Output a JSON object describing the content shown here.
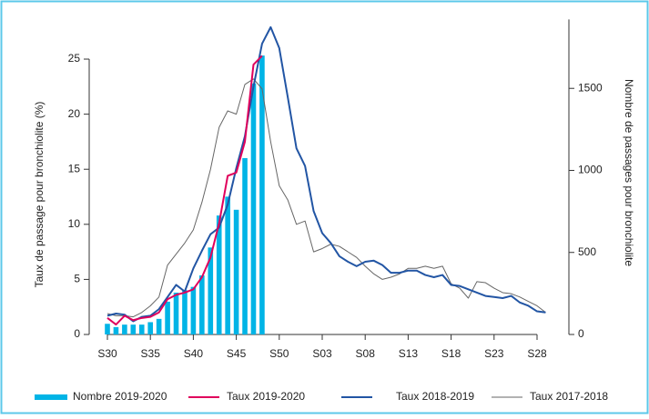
{
  "chart_data": {
    "type": "bar",
    "y_label": "Taux de passage pour bronchiolite (%)",
    "y2_label": "Nombre de passages pour bronchiolite",
    "categories": [
      "S30",
      null,
      null,
      null,
      null,
      "S35",
      null,
      null,
      null,
      null,
      "S40",
      null,
      null,
      null,
      null,
      "S45",
      null,
      null,
      null,
      null,
      "S50",
      null,
      null,
      null,
      null,
      "S03",
      null,
      null,
      null,
      null,
      "S08",
      null,
      null,
      null,
      null,
      "S13",
      null,
      null,
      null,
      null,
      "S18",
      null,
      null,
      null,
      null,
      "S23",
      null,
      null,
      null,
      null,
      "S28",
      null
    ],
    "ylim": [
      0,
      28.6
    ],
    "yticks": [
      0,
      5,
      10,
      15,
      20,
      25
    ],
    "y2lim": [
      0,
      1920
    ],
    "y2ticks": [
      0,
      500,
      1000,
      1500
    ],
    "grid": false,
    "series": [
      {
        "name": "Nombre 2019-2020",
        "type": "bar",
        "axis": "y2",
        "color": "#00b4e6",
        "values": [
          65,
          45,
          60,
          60,
          60,
          75,
          95,
          200,
          255,
          270,
          290,
          360,
          530,
          725,
          840,
          760,
          1075,
          1530,
          1700,
          null,
          null,
          null,
          null,
          null,
          null,
          null,
          null,
          null,
          null,
          null,
          null,
          null,
          null,
          null,
          null,
          null,
          null,
          null,
          null,
          null,
          null,
          null,
          null,
          null,
          null,
          null,
          null,
          null,
          null,
          null,
          null,
          null
        ]
      },
      {
        "name": "Taux 2019-2020",
        "type": "line",
        "color": "#e0005c",
        "values": [
          1.5,
          0.9,
          1.7,
          1.3,
          1.5,
          1.6,
          2.0,
          3.2,
          3.6,
          3.8,
          4.1,
          5.2,
          7.0,
          10.1,
          14.4,
          14.7,
          17.5,
          24.5,
          25.3,
          null,
          null,
          null,
          null,
          null,
          null,
          null,
          null,
          null,
          null,
          null,
          null,
          null,
          null,
          null,
          null,
          null,
          null,
          null,
          null,
          null,
          null,
          null,
          null,
          null,
          null,
          null,
          null,
          null,
          null,
          null,
          null,
          null
        ]
      },
      {
        "name": "Taux 2018-2019",
        "type": "line",
        "color": "#2255a4",
        "values": [
          1.7,
          1.9,
          1.8,
          1.2,
          1.6,
          1.7,
          2.3,
          3.4,
          4.5,
          3.9,
          6.0,
          7.6,
          9.1,
          9.7,
          11.8,
          15.1,
          18.0,
          22.5,
          26.4,
          27.9,
          26.0,
          21.5,
          16.9,
          15.3,
          11.2,
          9.2,
          8.3,
          7.1,
          6.6,
          6.2,
          6.6,
          6.7,
          6.3,
          5.6,
          5.6,
          5.8,
          5.8,
          5.4,
          5.2,
          5.4,
          4.5,
          4.4,
          4.1,
          3.8,
          3.5,
          3.4,
          3.3,
          3.5,
          2.9,
          2.6,
          2.1,
          2.0
        ]
      },
      {
        "name": "Taux 2017-2018",
        "type": "line",
        "color": "#666666",
        "values": [
          1.9,
          1.7,
          1.7,
          1.6,
          2.0,
          2.6,
          3.4,
          6.3,
          7.3,
          8.3,
          9.5,
          12.0,
          15.0,
          18.8,
          20.3,
          20.0,
          22.7,
          23.2,
          22.3,
          17.5,
          13.5,
          12.2,
          10.0,
          10.3,
          7.5,
          7.8,
          8.2,
          8.0,
          7.5,
          7.0,
          6.2,
          5.5,
          5.0,
          5.2,
          5.5,
          6.0,
          6.0,
          6.2,
          6.0,
          6.2,
          4.6,
          4.2,
          3.3,
          4.8,
          4.7,
          4.2,
          3.8,
          3.7,
          3.4,
          3.0,
          2.6,
          2.0
        ]
      }
    ]
  }
}
